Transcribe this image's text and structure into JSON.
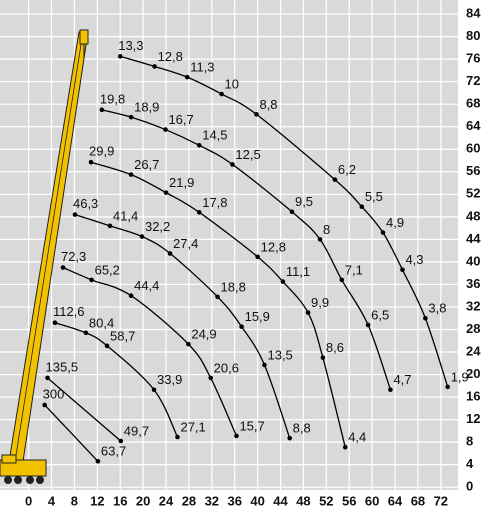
{
  "chart_data": {
    "type": "scatter",
    "color": "#000000",
    "grid": true,
    "xlim": [
      -5,
      75
    ],
    "ylim": [
      -0.5,
      86.5
    ],
    "xticks": [
      0,
      4,
      8,
      12,
      16,
      20,
      24,
      28,
      32,
      36,
      40,
      44,
      48,
      52,
      56,
      60,
      64,
      68,
      72
    ],
    "yticks": [
      0,
      4,
      8,
      12,
      16,
      20,
      24,
      28,
      32,
      36,
      40,
      44,
      48,
      52,
      56,
      60,
      64,
      68,
      72,
      76,
      80,
      84
    ],
    "series": [
      {
        "x": [
          16,
          22,
          27.7,
          33.7,
          39.8,
          53.5,
          58.2,
          61.9,
          65.3,
          69.3,
          73.2
        ],
        "values": [
          76.5,
          74.7,
          72.8,
          69.8,
          66.2,
          54.6,
          49.8,
          45.2,
          38.6,
          30,
          17.8
        ],
        "labels": [
          "13,3",
          "12,8",
          "11,3",
          "10",
          "8,8",
          "6,2",
          "5,5",
          "4,9",
          "4,3",
          "3,8",
          "1,9"
        ]
      },
      {
        "x": [
          12.8,
          17.9,
          23.9,
          29.8,
          35.6,
          46,
          50.9,
          54.7,
          59.3,
          63.2
        ],
        "values": [
          67,
          65.7,
          63.5,
          60.7,
          57.3,
          48.9,
          44,
          36.8,
          28.8,
          17.3
        ],
        "labels": [
          "19,8",
          "18,9",
          "16,7",
          "14,5",
          "12,5",
          "9,5",
          "8",
          "7,1",
          "6,5",
          "4,7"
        ]
      },
      {
        "x": [
          10.9,
          17.9,
          24,
          29.8,
          40,
          44.4,
          48.8,
          51.4,
          55.3
        ],
        "values": [
          57.7,
          55.5,
          52.3,
          48.8,
          40.9,
          36.5,
          31,
          23,
          7.1
        ],
        "labels": [
          "29,9",
          "26,7",
          "21,9",
          "17,8",
          "12,8",
          "11,1",
          "9,9",
          "8,6",
          "4,4"
        ]
      },
      {
        "x": [
          8.1,
          14.2,
          19.8,
          24.7,
          33,
          37.2,
          41.2,
          45.6
        ],
        "values": [
          48.4,
          46.4,
          44.5,
          41.5,
          33.8,
          28.5,
          21.7,
          8.7
        ],
        "labels": [
          "46,3",
          "41,4",
          "32,2",
          "27,4",
          "18,8",
          "15,9",
          "13,5",
          "8,8"
        ]
      },
      {
        "x": [
          6,
          11,
          17.9,
          27.9,
          31.8,
          36.3
        ],
        "values": [
          39,
          36.8,
          34,
          25.4,
          19.4,
          9.1
        ],
        "labels": [
          "72,3",
          "65,2",
          "44,4",
          "24,9",
          "20,6",
          "15,7"
        ]
      },
      {
        "x": [
          4.6,
          10,
          13.7,
          21.9,
          26
        ],
        "values": [
          29.2,
          27.4,
          25.1,
          17.3,
          8.9
        ],
        "labels": [
          "112,6",
          "80,4",
          "58,7",
          "33,9",
          "27,1"
        ]
      },
      {
        "x": [
          3.3,
          16.1
        ],
        "values": [
          19.4,
          8.2
        ],
        "labels": [
          "135,5",
          "49,7"
        ]
      },
      {
        "x": [
          2.8,
          12.1
        ],
        "values": [
          14.6,
          4.6
        ],
        "labels": [
          "300",
          "63,7"
        ]
      }
    ]
  }
}
